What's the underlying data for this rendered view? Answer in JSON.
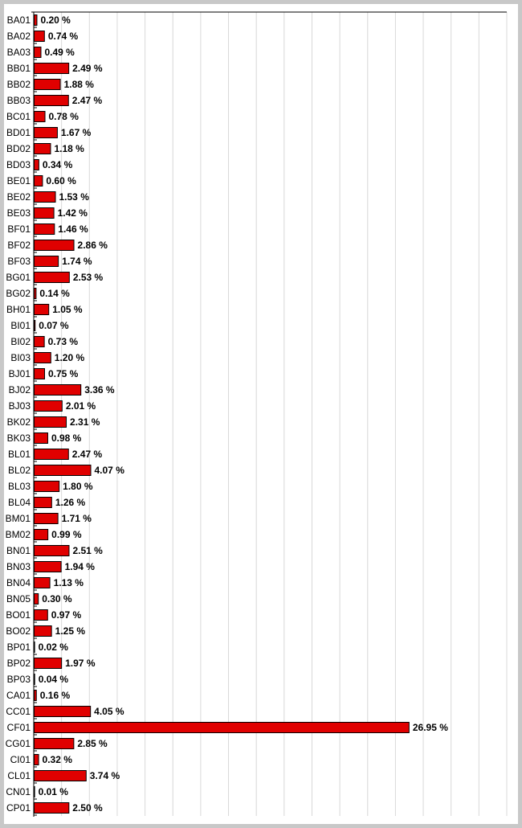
{
  "chart_data": {
    "type": "bar",
    "orientation": "horizontal",
    "categories": [
      "BA01",
      "BA02",
      "BA03",
      "BB01",
      "BB02",
      "BB03",
      "BC01",
      "BD01",
      "BD02",
      "BD03",
      "BE01",
      "BE02",
      "BE03",
      "BF01",
      "BF02",
      "BF03",
      "BG01",
      "BG02",
      "BH01",
      "BI01",
      "BI02",
      "BI03",
      "BJ01",
      "BJ02",
      "BJ03",
      "BK02",
      "BK03",
      "BL01",
      "BL02",
      "BL03",
      "BL04",
      "BM01",
      "BM02",
      "BN01",
      "BN03",
      "BN04",
      "BN05",
      "BO01",
      "BO02",
      "BP01",
      "BP02",
      "BP03",
      "CA01",
      "CC01",
      "CF01",
      "CG01",
      "CI01",
      "CL01",
      "CN01",
      "CP01"
    ],
    "values": [
      0.2,
      0.74,
      0.49,
      2.49,
      1.88,
      2.47,
      0.78,
      1.67,
      1.18,
      0.34,
      0.6,
      1.53,
      1.42,
      1.46,
      2.86,
      1.74,
      2.53,
      0.14,
      1.05,
      0.07,
      0.73,
      1.2,
      0.75,
      3.36,
      2.01,
      2.31,
      0.98,
      2.47,
      4.07,
      1.8,
      1.26,
      1.71,
      0.99,
      2.51,
      1.94,
      1.13,
      0.3,
      0.97,
      1.25,
      0.02,
      1.97,
      0.04,
      0.16,
      4.05,
      26.95,
      2.85,
      0.32,
      3.74,
      0.01,
      2.5
    ],
    "value_labels": [
      "0.20 %",
      "0.74 %",
      "0.49 %",
      "2.49 %",
      "1.88 %",
      "2.47 %",
      "0.78 %",
      "1.67 %",
      "1.18 %",
      "0.34 %",
      "0.60 %",
      "1.53 %",
      "1.42 %",
      "1.46 %",
      "2.86 %",
      "1.74 %",
      "2.53 %",
      "0.14 %",
      "1.05 %",
      "0.07 %",
      "0.73 %",
      "1.20 %",
      "0.75 %",
      "3.36 %",
      "2.01 %",
      "2.31 %",
      "0.98 %",
      "2.47 %",
      "4.07 %",
      "1.80 %",
      "1.26 %",
      "1.71 %",
      "0.99 %",
      "2.51 %",
      "1.94 %",
      "1.13 %",
      "0.30 %",
      "0.97 %",
      "1.25 %",
      "0.02 %",
      "1.97 %",
      "0.04 %",
      "0.16 %",
      "4.05 %",
      "26.95 %",
      "2.85 %",
      "0.32 %",
      "3.74 %",
      "0.01 %",
      "2.50 %"
    ],
    "xlim": [
      0,
      34
    ],
    "grid": true,
    "legend": "none",
    "title": "",
    "xlabel": "",
    "ylabel": "",
    "colors": {
      "bar_fill": "#e00000",
      "bar_stroke": "#000000",
      "grid": "#d8d8d8",
      "frame": "#c8c8c8",
      "plot_bg": "#ffffff"
    }
  }
}
